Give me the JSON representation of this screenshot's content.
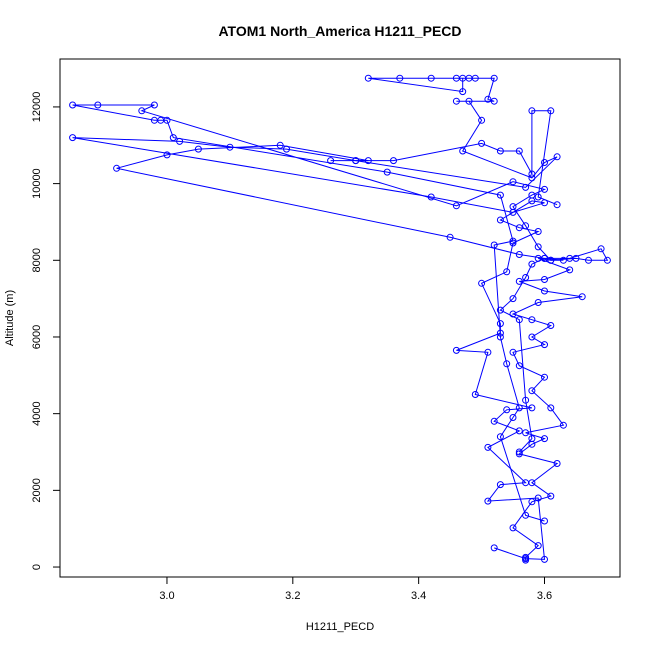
{
  "chart_data": {
    "type": "scatter",
    "title": "ATOM1 North_America H1211_PECD",
    "xlabel": "H1211_PECD",
    "ylabel": "Altitude (m)",
    "xlim": [
      2.83,
      3.72
    ],
    "ylim": [
      -260,
      13250
    ],
    "x_ticks": [
      3.0,
      3.2,
      3.4,
      3.6
    ],
    "x_tick_labels": [
      "3.0",
      "3.2",
      "3.4",
      "3.6"
    ],
    "y_ticks": [
      0,
      2000,
      4000,
      6000,
      8000,
      10000,
      12000
    ],
    "y_tick_labels": [
      "0",
      "2000",
      "4000",
      "6000",
      "8000",
      "10000",
      "12000"
    ],
    "grid": false,
    "legend": "none",
    "series": [
      {
        "color": "#0000ff",
        "marker": "open-circle",
        "connected": true,
        "points": [
          [
            3.57,
            180
          ],
          [
            3.57,
            250
          ],
          [
            3.59,
            560
          ],
          [
            3.55,
            1020
          ],
          [
            3.58,
            1700
          ],
          [
            3.61,
            1850
          ],
          [
            3.58,
            2200
          ],
          [
            3.62,
            2700
          ],
          [
            3.56,
            2950
          ],
          [
            3.58,
            3200
          ],
          [
            3.6,
            3350
          ],
          [
            3.57,
            3500
          ],
          [
            3.63,
            3700
          ],
          [
            3.61,
            4150
          ],
          [
            3.58,
            4600
          ],
          [
            3.6,
            4950
          ],
          [
            3.56,
            5250
          ],
          [
            3.55,
            5600
          ],
          [
            3.6,
            5800
          ],
          [
            3.58,
            6000
          ],
          [
            3.61,
            6300
          ],
          [
            3.58,
            6450
          ],
          [
            3.55,
            6600
          ],
          [
            3.59,
            6900
          ],
          [
            3.66,
            7050
          ],
          [
            3.6,
            7200
          ],
          [
            3.56,
            7450
          ],
          [
            3.6,
            7500
          ],
          [
            3.64,
            7750
          ],
          [
            3.59,
            8050
          ],
          [
            3.61,
            8000
          ],
          [
            3.65,
            8050
          ],
          [
            3.67,
            8000
          ],
          [
            3.7,
            8000
          ],
          [
            3.69,
            8300
          ],
          [
            3.64,
            8050
          ],
          [
            3.6,
            8050
          ],
          [
            3.56,
            8150
          ],
          [
            3.45,
            8600
          ],
          [
            2.92,
            10400
          ],
          [
            3.0,
            10750
          ],
          [
            3.05,
            10900
          ],
          [
            3.18,
            11000
          ],
          [
            3.32,
            10600
          ],
          [
            3.26,
            10600
          ],
          [
            3.3,
            10600
          ],
          [
            3.57,
            9900
          ],
          [
            3.62,
            10700
          ],
          [
            3.6,
            10550
          ],
          [
            3.58,
            10150
          ],
          [
            3.47,
            10850
          ],
          [
            3.5,
            11650
          ],
          [
            3.48,
            12150
          ],
          [
            3.46,
            12150
          ],
          [
            3.52,
            12150
          ],
          [
            3.51,
            12200
          ],
          [
            3.52,
            12750
          ],
          [
            3.49,
            12750
          ],
          [
            3.46,
            12750
          ],
          [
            3.42,
            12750
          ],
          [
            3.37,
            12750
          ],
          [
            3.32,
            12750
          ],
          [
            3.47,
            12400
          ],
          [
            3.47,
            12750
          ],
          [
            3.48,
            12750
          ]
        ]
      },
      {
        "color": "#0000ff",
        "marker": "open-circle",
        "connected": true,
        "points": [
          [
            3.52,
            500
          ],
          [
            3.57,
            220
          ],
          [
            3.6,
            200
          ],
          [
            3.59,
            1800
          ],
          [
            3.51,
            1720
          ],
          [
            3.53,
            2150
          ],
          [
            3.57,
            2200
          ],
          [
            3.51,
            3120
          ],
          [
            3.56,
            3550
          ],
          [
            3.52,
            3800
          ],
          [
            3.54,
            4100
          ],
          [
            3.58,
            4150
          ],
          [
            3.49,
            4500
          ],
          [
            3.51,
            5600
          ],
          [
            3.46,
            5650
          ],
          [
            3.53,
            6100
          ],
          [
            3.53,
            6350
          ],
          [
            3.5,
            7400
          ],
          [
            3.54,
            7700
          ],
          [
            3.55,
            8450
          ],
          [
            3.59,
            8750
          ],
          [
            3.56,
            8850
          ],
          [
            3.53,
            9050
          ],
          [
            3.58,
            9550
          ],
          [
            3.6,
            9500
          ],
          [
            3.55,
            9250
          ],
          [
            3.42,
            9650
          ],
          [
            2.85,
            11200
          ],
          [
            3.02,
            11100
          ],
          [
            3.1,
            10950
          ],
          [
            3.19,
            10900
          ],
          [
            3.3,
            10600
          ],
          [
            3.36,
            10600
          ],
          [
            3.5,
            11050
          ],
          [
            3.53,
            10850
          ],
          [
            3.56,
            10850
          ],
          [
            3.58,
            10250
          ],
          [
            3.58,
            11900
          ],
          [
            3.61,
            11900
          ],
          [
            3.59,
            9650
          ],
          [
            3.62,
            9450
          ]
        ]
      },
      {
        "color": "#0000ff",
        "marker": "open-circle",
        "connected": true,
        "points": [
          [
            3.56,
            3000
          ],
          [
            3.58,
            3350
          ],
          [
            3.57,
            4350
          ],
          [
            3.56,
            6450
          ],
          [
            3.53,
            6700
          ],
          [
            3.55,
            7000
          ],
          [
            3.57,
            7550
          ],
          [
            3.58,
            7900
          ],
          [
            3.6,
            8050
          ],
          [
            3.63,
            8000
          ],
          [
            3.61,
            8000
          ],
          [
            3.59,
            8350
          ],
          [
            3.57,
            8900
          ],
          [
            3.55,
            9400
          ],
          [
            3.58,
            9700
          ],
          [
            3.6,
            9850
          ],
          [
            3.55,
            10050
          ],
          [
            3.46,
            9420
          ],
          [
            2.96,
            11900
          ],
          [
            2.98,
            12050
          ],
          [
            2.89,
            12050
          ],
          [
            2.85,
            12050
          ],
          [
            2.98,
            11650
          ],
          [
            2.99,
            11650
          ],
          [
            3.0,
            11650
          ],
          [
            3.01,
            11200
          ],
          [
            3.35,
            10300
          ],
          [
            3.53,
            9700
          ],
          [
            3.55,
            8500
          ],
          [
            3.52,
            8400
          ],
          [
            3.53,
            6000
          ],
          [
            3.54,
            5300
          ],
          [
            3.56,
            4150
          ],
          [
            3.55,
            3900
          ],
          [
            3.53,
            3400
          ],
          [
            3.57,
            1350
          ],
          [
            3.6,
            1200
          ]
        ]
      }
    ]
  }
}
